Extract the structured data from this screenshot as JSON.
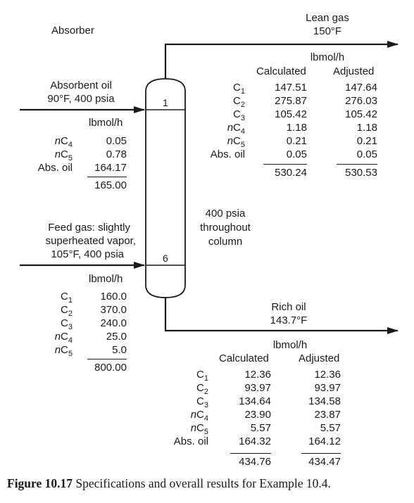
{
  "absorber_label": "Absorber",
  "top_stage": "1",
  "feed_stage": "6",
  "pressure_note": [
    "400 psia",
    "throughout",
    "column"
  ],
  "lean_gas": {
    "title": [
      "Lean gas",
      "150°F"
    ],
    "units": "lbmol/h",
    "col1": "Calculated",
    "col2": "Adjusted",
    "rows": [
      {
        "comp": "C",
        "sub": "1",
        "a": "147.51",
        "b": "147.64"
      },
      {
        "comp": "C",
        "sub": "2",
        "a": "275.87",
        "b": "276.03"
      },
      {
        "comp": "C",
        "sub": "3",
        "a": "105.42",
        "b": "105.42"
      },
      {
        "comp": "nC",
        "sub": "4",
        "a": "1.18",
        "b": "1.18"
      },
      {
        "comp": "nC",
        "sub": "5",
        "a": "0.21",
        "b": "0.21"
      },
      {
        "comp": "Abs. oil",
        "sub": "",
        "a": "0.05",
        "b": "0.05"
      }
    ],
    "total_a": "530.24",
    "total_b": "530.53"
  },
  "absorbent_oil": {
    "title": [
      "Absorbent oil",
      "90°F, 400 psia"
    ],
    "units": "lbmol/h",
    "rows": [
      {
        "comp": "nC",
        "sub": "4",
        "v": "0.05"
      },
      {
        "comp": "nC",
        "sub": "5",
        "v": "0.78"
      },
      {
        "comp": "Abs. oil",
        "sub": "",
        "v": "164.17"
      }
    ],
    "total": "165.00"
  },
  "feed_gas": {
    "title": [
      "Feed gas: slightly",
      "superheated vapor,",
      "105°F, 400 psia"
    ],
    "units": "lbmol/h",
    "rows": [
      {
        "comp": "C",
        "sub": "1",
        "v": "160.0"
      },
      {
        "comp": "C",
        "sub": "2",
        "v": "370.0"
      },
      {
        "comp": "C",
        "sub": "3",
        "v": "240.0"
      },
      {
        "comp": "nC",
        "sub": "4",
        "v": "25.0"
      },
      {
        "comp": "nC",
        "sub": "5",
        "v": "5.0"
      }
    ],
    "total": "800.00"
  },
  "rich_oil": {
    "title": [
      "Rich oil",
      "143.7°F"
    ],
    "units": "lbmol/h",
    "col1": "Calculated",
    "col2": "Adjusted",
    "rows": [
      {
        "comp": "C",
        "sub": "1",
        "a": "12.36",
        "b": "12.36"
      },
      {
        "comp": "C",
        "sub": "2",
        "a": "93.97",
        "b": "93.97"
      },
      {
        "comp": "C",
        "sub": "3",
        "a": "134.64",
        "b": "134.58"
      },
      {
        "comp": "nC",
        "sub": "4",
        "a": "23.90",
        "b": "23.87"
      },
      {
        "comp": "nC",
        "sub": "5",
        "a": "5.57",
        "b": "5.57"
      },
      {
        "comp": "Abs. oil",
        "sub": "",
        "a": "164.32",
        "b": "164.12"
      }
    ],
    "total_a": "434.76",
    "total_b": "434.47"
  },
  "caption": {
    "label": "Figure 10.17",
    "text": " Specifications and overall results for Example 10.4."
  }
}
